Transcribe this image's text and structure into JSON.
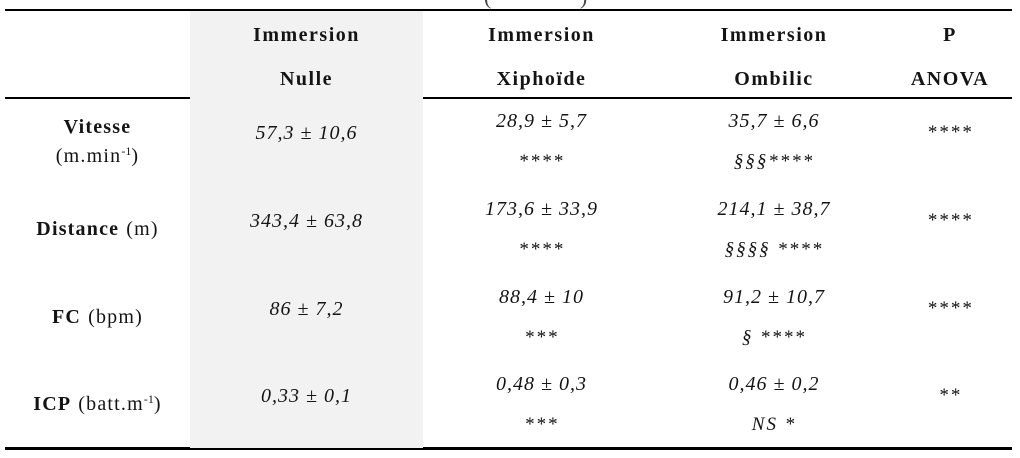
{
  "table": {
    "caption_remnant": {
      "left": "(",
      "right": ")"
    },
    "headers": [
      {
        "line1": "Immersion",
        "line2": "Nulle"
      },
      {
        "line1": "Immersion",
        "line2": "Xiphoïde"
      },
      {
        "line1": "Immersion",
        "line2": "Ombilic"
      },
      {
        "line1": "P",
        "line2": "ANOVA"
      }
    ],
    "rows": [
      {
        "name": "Vitesse",
        "unit_prefix": "(m.min",
        "unit_sup": "-1",
        "unit_suffix": ")",
        "nulle": "57,3 ± 10,6",
        "xiphoide": {
          "value": "28,9 ± 5,7",
          "sig": "****"
        },
        "ombilic": {
          "value": "35,7 ± 6,6",
          "sig": "§§§****"
        },
        "p": "****"
      },
      {
        "name": "Distance",
        "unit_prefix": "(m)",
        "unit_sup": "",
        "unit_suffix": "",
        "nulle": "343,4 ± 63,8",
        "xiphoide": {
          "value": "173,6 ± 33,9",
          "sig": "****"
        },
        "ombilic": {
          "value": "214,1 ± 38,7",
          "sig": "§§§§ ****"
        },
        "p": "****"
      },
      {
        "name": "FC",
        "unit_prefix": "(bpm)",
        "unit_sup": "",
        "unit_suffix": "",
        "nulle": "86 ± 7,2",
        "xiphoide": {
          "value": "88,4 ± 10",
          "sig": "***"
        },
        "ombilic": {
          "value": "91,2 ± 10,7",
          "sig": "§ ****"
        },
        "p": "****"
      },
      {
        "name": "ICP",
        "unit_prefix": "(batt.m",
        "unit_sup": "-1",
        "unit_suffix": ")",
        "nulle": "0,33 ± 0,1",
        "xiphoide": {
          "value": "0,48 ± 0,3",
          "sig": "***"
        },
        "ombilic": {
          "value": "0,46 ± 0,2",
          "sig": "NS *"
        },
        "p": "**"
      }
    ],
    "colors": {
      "shaded_column_bg": "#f2f2f2",
      "rule": "#000000",
      "text": "#141414"
    }
  }
}
